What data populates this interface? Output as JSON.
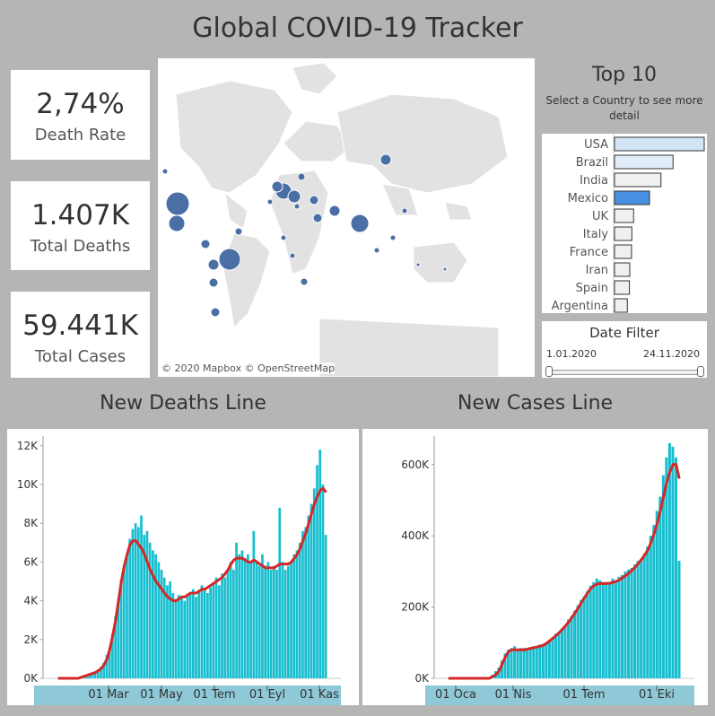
{
  "dashboard": {
    "title": "Global COVID-19 Tracker"
  },
  "kpis": [
    {
      "value": "2,74%",
      "label": "Death Rate"
    },
    {
      "value": "1.407K",
      "label": "Total Deaths"
    },
    {
      "value": "59.441K",
      "label": "Total Cases"
    }
  ],
  "map": {
    "attribution": "© 2020 Mapbox © OpenStreetMap"
  },
  "top10": {
    "title": "Top 10",
    "subtitle": "Select a Country to see more detail",
    "selected": "Mexico",
    "colors": {
      "selected": "#4a90e2",
      "high": "#d4e4f7",
      "low": "#f0f0f0"
    }
  },
  "date_filter": {
    "title": "Date Filter",
    "start": "1.01.2020",
    "end": "24.11.2020"
  },
  "colors": {
    "bar": "#17becf",
    "line": "#d62728",
    "bubble": "#4a6fa5"
  },
  "chart_data": [
    {
      "type": "bar",
      "title": "Top 10",
      "categories": [
        "USA",
        "Brazil",
        "India",
        "Mexico",
        "UK",
        "Italy",
        "France",
        "Iran",
        "Spain",
        "Argentina"
      ],
      "values": [
        259000,
        169000,
        134000,
        101000,
        55000,
        50000,
        49000,
        44000,
        43000,
        37000
      ]
    },
    {
      "type": "bar",
      "title": "New Deaths Line",
      "x_ticks": [
        "01 Mar",
        "01 May",
        "01 Tem",
        "01 Eyl",
        "01 Kas"
      ],
      "y_ticks": [
        "0K",
        "2K",
        "4K",
        "6K",
        "8K",
        "10K",
        "12K"
      ],
      "ylim": [
        0,
        12500
      ],
      "series": [
        {
          "values_key": "deaths_daily"
        },
        {
          "values_key": "deaths_avg"
        }
      ],
      "deaths_daily": [
        0,
        0,
        0,
        0,
        0,
        0,
        0,
        0,
        100,
        100,
        200,
        200,
        300,
        300,
        400,
        600,
        800,
        1200,
        1600,
        2300,
        3200,
        4100,
        5100,
        5800,
        6400,
        7200,
        7700,
        8000,
        7800,
        8400,
        7400,
        7600,
        7000,
        6600,
        6400,
        6000,
        5600,
        5200,
        4800,
        5000,
        4400,
        4100,
        4300,
        4200,
        4000,
        4300,
        4400,
        4600,
        4200,
        4500,
        4800,
        4600,
        4400,
        4700,
        4900,
        5200,
        4800,
        5400,
        5200,
        5600,
        6000,
        5600,
        7000,
        6400,
        6600,
        6200,
        6400,
        6000,
        7600,
        6000,
        5800,
        6400,
        5800,
        6000,
        5600,
        5800,
        5600,
        8800,
        6000,
        5600,
        5800,
        6000,
        6400,
        6600,
        7000,
        7600,
        7800,
        8400,
        9000,
        9800,
        11000,
        11800,
        10000,
        7400
      ],
      "deaths_avg": [
        0,
        0,
        0,
        0,
        0,
        0,
        0,
        0,
        50,
        100,
        150,
        200,
        250,
        300,
        400,
        500,
        700,
        1000,
        1500,
        2200,
        3000,
        4000,
        5000,
        5800,
        6400,
        6900,
        7100,
        7100,
        6900,
        6700,
        6400,
        6000,
        5600,
        5300,
        5000,
        4800,
        4600,
        4400,
        4200,
        4100,
        4000,
        4000,
        4100,
        4200,
        4200,
        4300,
        4400,
        4400,
        4400,
        4500,
        4600,
        4600,
        4700,
        4800,
        4900,
        5000,
        5100,
        5200,
        5400,
        5600,
        5900,
        6100,
        6200,
        6200,
        6200,
        6100,
        6000,
        6000,
        6100,
        6000,
        5900,
        5800,
        5700,
        5700,
        5700,
        5700,
        5800,
        5900,
        5900,
        5900,
        5900,
        6000,
        6200,
        6400,
        6700,
        7100,
        7500,
        8000,
        8500,
        9000,
        9400,
        9700,
        9800,
        9600
      ],
      "line_start_zero": true
    },
    {
      "type": "bar",
      "title": "New Cases Line",
      "x_ticks": [
        "01 Oca",
        "01 Nis",
        "01 Tem",
        "01 Eki"
      ],
      "y_ticks": [
        "0K",
        "200K",
        "400K",
        "600K"
      ],
      "ylim": [
        0,
        680000
      ],
      "cases_daily": [
        0,
        0,
        0,
        0,
        0,
        0,
        0,
        0,
        0,
        0,
        0,
        0,
        0,
        0,
        10000,
        20000,
        30000,
        50000,
        70000,
        80000,
        85000,
        90000,
        80000,
        85000,
        85000,
        80000,
        85000,
        90000,
        85000,
        95000,
        90000,
        100000,
        105000,
        115000,
        125000,
        130000,
        140000,
        150000,
        165000,
        175000,
        190000,
        205000,
        220000,
        230000,
        245000,
        260000,
        270000,
        280000,
        275000,
        270000,
        270000,
        265000,
        280000,
        275000,
        285000,
        290000,
        300000,
        305000,
        310000,
        320000,
        330000,
        335000,
        350000,
        370000,
        400000,
        430000,
        470000,
        510000,
        570000,
        620000,
        660000,
        650000,
        620000,
        330000
      ],
      "cases_avg": [
        0,
        0,
        0,
        0,
        0,
        0,
        0,
        0,
        0,
        0,
        0,
        0,
        0,
        0,
        5000,
        10000,
        20000,
        40000,
        60000,
        75000,
        80000,
        80000,
        80000,
        80000,
        80000,
        82000,
        84000,
        86000,
        88000,
        90000,
        93000,
        98000,
        105000,
        112000,
        120000,
        128000,
        137000,
        147000,
        158000,
        170000,
        183000,
        197000,
        212000,
        226000,
        240000,
        252000,
        260000,
        265000,
        266000,
        266000,
        266000,
        267000,
        269000,
        272000,
        276000,
        282000,
        288000,
        295000,
        303000,
        312000,
        322000,
        333000,
        345000,
        360000,
        380000,
        405000,
        435000,
        470000,
        510000,
        550000,
        580000,
        600000,
        600000,
        560000
      ]
    }
  ]
}
